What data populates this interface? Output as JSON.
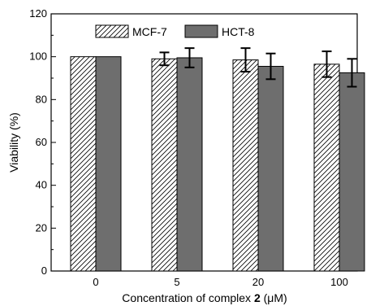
{
  "chart_data": {
    "type": "bar",
    "title": "",
    "xlabel_prefix": "Concentration of complex ",
    "xlabel_bold": "2",
    "xlabel_suffix": " (μM)",
    "ylabel": "Viability (%)",
    "categories": [
      "0",
      "5",
      "20",
      "100"
    ],
    "ylim": [
      0,
      120
    ],
    "yticks": [
      "0",
      "20",
      "40",
      "60",
      "80",
      "100",
      "120"
    ],
    "grid": false,
    "legend_position": "top-left",
    "series": [
      {
        "name": "MCF-7",
        "pattern": "diagonal-hatch",
        "color": "#ffffff",
        "values": [
          100,
          99,
          98.5,
          96.5
        ],
        "errors": [
          0,
          3,
          5.5,
          6
        ]
      },
      {
        "name": "HCT-8",
        "pattern": "solid",
        "color": "#6e6e6e",
        "values": [
          100,
          99.5,
          95.5,
          92.5
        ],
        "errors": [
          0,
          4.5,
          6,
          6.5
        ]
      }
    ]
  }
}
